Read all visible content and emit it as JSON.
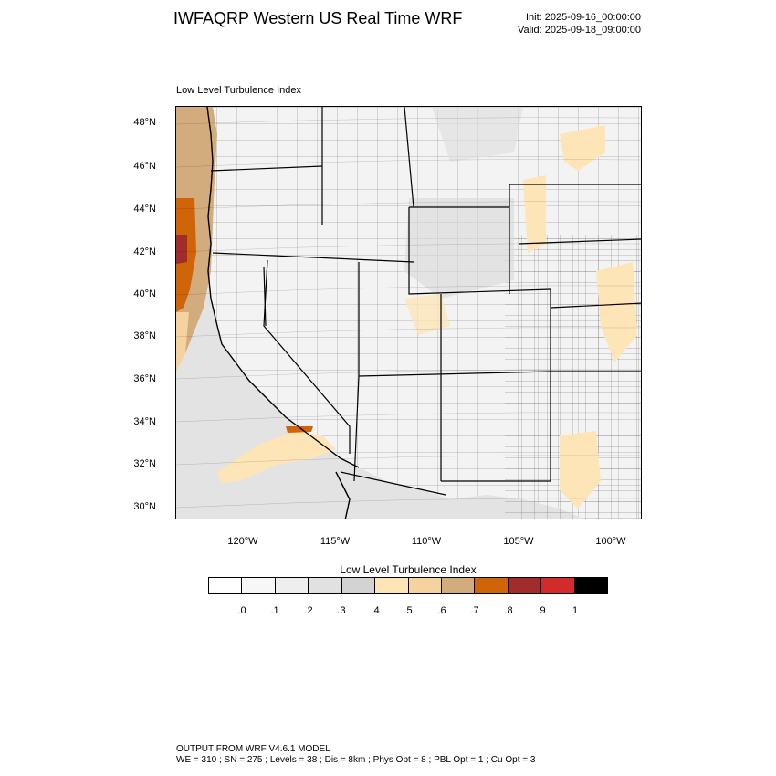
{
  "header": {
    "title": "IWFAQRP Western US Real Time WRF",
    "init": "Init: 2025-09-16_00:00:00",
    "valid": "Valid: 2025-09-18_09:00:00"
  },
  "map": {
    "subtitle": "Low Level Turbulence Index",
    "lat_labels": [
      "48°N",
      "46°N",
      "44°N",
      "42°N",
      "40°N",
      "38°N",
      "36°N",
      "34°N",
      "32°N",
      "30°N"
    ],
    "lon_labels": [
      "120°W",
      "115°W",
      "110°W",
      "105°W",
      "100°W"
    ]
  },
  "colorbar": {
    "title": "Low Level Turbulence Index",
    "labels": [
      ".0",
      ".1",
      ".2",
      ".3",
      ".4",
      ".5",
      ".6",
      ".7",
      ".8",
      ".9",
      "1"
    ],
    "colors": [
      "#ffffff",
      "#f7f7f7",
      "#eeeeee",
      "#e1e1e1",
      "#d3d3d3",
      "#fde5b8",
      "#f6d29f",
      "#d2ac7c",
      "#cf6408",
      "#a02c2c",
      "#d22b2b",
      "#000000"
    ]
  },
  "footer": {
    "line1": "OUTPUT FROM WRF V4.6.1 MODEL",
    "line2": "WE = 310 ; SN = 275 ; Levels = 38 ; Dis = 8km ; Phys Opt = 8 ; PBL Opt = 1 ; Cu Opt = 3"
  }
}
